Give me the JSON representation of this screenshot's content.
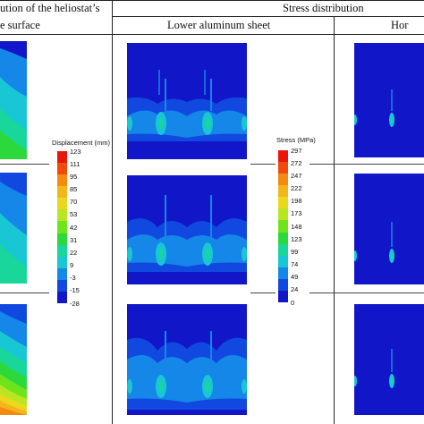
{
  "header": {
    "col1_line1": "ution of the heliostat’s",
    "col1_line2": "e surface",
    "stress_title": "Stress distribution",
    "col2_label": "Lower aluminum sheet",
    "col3_label": "Hor"
  },
  "displacement_legend": {
    "title": "Displacement (mm)",
    "ticks": [
      "123",
      "111",
      "95",
      "85",
      "70",
      "53",
      "42",
      "31",
      "22",
      "9",
      "-3",
      "-15",
      "-28"
    ],
    "colors": [
      "#e8170a",
      "#f04a0c",
      "#f48a12",
      "#f4b51a",
      "#e9d91e",
      "#b9e521",
      "#6fe41c",
      "#2bd93d",
      "#19d69a",
      "#19c7d4",
      "#1487e8",
      "#1149e0",
      "#1116c9"
    ]
  },
  "stress_legend": {
    "title": "Stress (MPa)",
    "ticks": [
      "297",
      "272",
      "247",
      "222",
      "198",
      "173",
      "148",
      "123",
      "99",
      "74",
      "49",
      "24",
      "0"
    ],
    "colors": [
      "#e8170a",
      "#f04a0c",
      "#f48a12",
      "#f4b51a",
      "#e9d91e",
      "#b9e521",
      "#6fe41c",
      "#2bd93d",
      "#19d69a",
      "#19c7d4",
      "#1487e8",
      "#1149e0",
      "#1116c9"
    ]
  }
}
